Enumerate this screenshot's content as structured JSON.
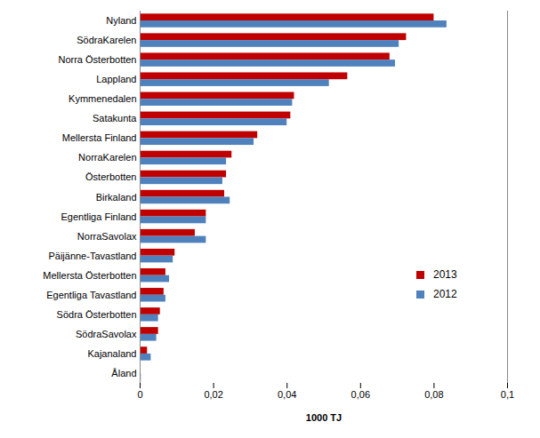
{
  "chart_data": {
    "type": "bar",
    "orientation": "horizontal",
    "categories": [
      "Nyland",
      "SödraKarelen",
      "Norra Österbotten",
      "Lappland",
      "Kymmenedalen",
      "Satakunta",
      "Mellersta Finland",
      "NorraKarelen",
      "Österbotten",
      "Birkaland",
      "Egentliga Finland",
      "NorraSavolax",
      "Päijänne-Tavastland",
      "Mellersta Österbotten",
      "Egentliga Tavastland",
      "Södra Österbotten",
      "SödraSavolax",
      "Kajanaland",
      "Åland"
    ],
    "series": [
      {
        "name": "2013",
        "color": "#c00000",
        "values": [
          0.08,
          0.0725,
          0.068,
          0.0565,
          0.042,
          0.041,
          0.032,
          0.025,
          0.0235,
          0.023,
          0.018,
          0.015,
          0.0095,
          0.007,
          0.0065,
          0.0055,
          0.005,
          0.002,
          0
        ]
      },
      {
        "name": "2012",
        "color": "#4f81bd",
        "values": [
          0.0835,
          0.0705,
          0.0695,
          0.0515,
          0.0415,
          0.04,
          0.031,
          0.0235,
          0.0225,
          0.0245,
          0.018,
          0.018,
          0.009,
          0.008,
          0.007,
          0.005,
          0.0045,
          0.003,
          0.0003
        ]
      }
    ],
    "x_label": "1000 TJ",
    "xlim": [
      0,
      0.1
    ],
    "xticks": [
      {
        "value": 0,
        "label": "0"
      },
      {
        "value": 0.02,
        "label": "0,02"
      },
      {
        "value": 0.04,
        "label": "0,04"
      },
      {
        "value": 0.06,
        "label": "0,06"
      },
      {
        "value": 0.08,
        "label": "0,08"
      },
      {
        "value": 0.1,
        "label": "0,1"
      }
    ],
    "grid": false,
    "legend": "right"
  }
}
